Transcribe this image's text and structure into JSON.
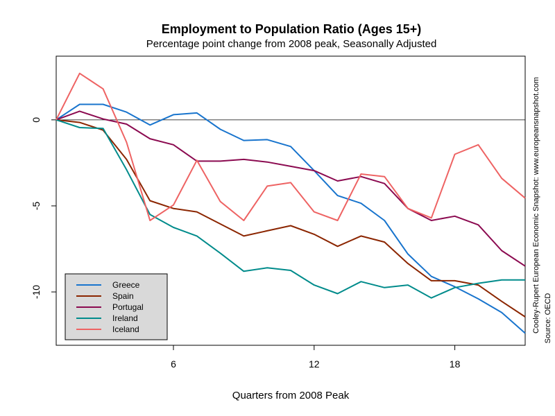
{
  "chart_data": {
    "type": "line",
    "title": "Employment to Population Ratio (Ages 15+)",
    "subtitle": "Percentage point change from 2008 peak, Seasonally Adjusted",
    "xlabel": "Quarters from 2008 Peak",
    "ylabel": "",
    "xlim": [
      1,
      21
    ],
    "ylim": [
      -13.1,
      3.7
    ],
    "xticks": [
      6,
      12,
      18
    ],
    "xtick_labels": [
      "6",
      "12",
      "18"
    ],
    "yticks": [
      0,
      -5,
      -10
    ],
    "ytick_labels": [
      "0",
      "-5",
      "-10"
    ],
    "reference_line": 0,
    "grid": false,
    "legend": {
      "position": "bottom-left",
      "background": "#d9d9d9"
    },
    "x": [
      1,
      2,
      3,
      4,
      5,
      6,
      7,
      8,
      9,
      10,
      11,
      12,
      13,
      14,
      15,
      16,
      17,
      18,
      19,
      20,
      21
    ],
    "series": [
      {
        "name": "Greece",
        "color": "#1874cd",
        "values": [
          0,
          0.9,
          0.9,
          0.45,
          -0.3,
          0.3,
          0.4,
          -0.55,
          -1.2,
          -1.15,
          -1.55,
          -2.95,
          -4.4,
          -4.85,
          -5.85,
          -7.8,
          -9.1,
          -9.7,
          -10.4,
          -11.2,
          -12.4
        ]
      },
      {
        "name": "Spain",
        "color": "#8b2500",
        "values": [
          0,
          -0.15,
          -0.6,
          -2.3,
          -4.7,
          -5.15,
          -5.35,
          -6.05,
          -6.75,
          -6.45,
          -6.15,
          -6.65,
          -7.35,
          -6.75,
          -7.1,
          -8.35,
          -9.35,
          -9.35,
          -9.6,
          -10.55,
          -11.45
        ]
      },
      {
        "name": "Portugal",
        "color": "#8b0a50",
        "values": [
          0,
          0.5,
          0.05,
          -0.25,
          -1.1,
          -1.45,
          -2.4,
          -2.4,
          -2.3,
          -2.45,
          -2.7,
          -2.95,
          -3.55,
          -3.3,
          -3.7,
          -5.15,
          -5.85,
          -5.6,
          -6.1,
          -7.6,
          -8.5
        ]
      },
      {
        "name": "Ireland",
        "color": "#008b8b",
        "values": [
          0,
          -0.45,
          -0.5,
          -2.9,
          -5.5,
          -6.25,
          -6.75,
          -7.75,
          -8.8,
          -8.6,
          -8.75,
          -9.6,
          -10.1,
          -9.4,
          -9.75,
          -9.6,
          -10.35,
          -9.75,
          -9.5,
          -9.3,
          -9.3
        ]
      },
      {
        "name": "Iceland",
        "color": "#ee6363",
        "values": [
          0,
          2.7,
          1.8,
          -1.3,
          -5.85,
          -4.95,
          -2.35,
          -4.75,
          -5.85,
          -3.85,
          -3.65,
          -5.35,
          -5.85,
          -3.15,
          -3.3,
          -5.15,
          -5.7,
          -2.0,
          -1.45,
          -3.4,
          -4.55
        ]
      }
    ],
    "side_notes": [
      "Cooley-Rupert European Economic Snapshot: www.europeansnapshot.com",
      "Source: OECD"
    ]
  }
}
